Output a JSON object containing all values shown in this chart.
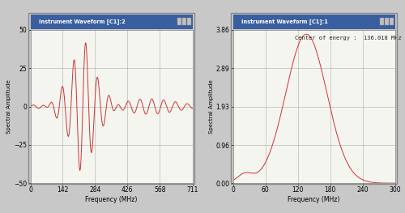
{
  "left_title": "Instrument Waveform [C1]:2",
  "right_title": "Instrument Waveform [C1]:1",
  "left_xlabel": "Frequency (MHz)",
  "right_xlabel": "Frequency (MHz)",
  "left_ylabel": "Spectral Amplitude",
  "right_ylabel": "Spectral Amplitude",
  "left_xlim": [
    0,
    711
  ],
  "left_ylim": [
    -50,
    50
  ],
  "left_xticks": [
    0,
    142,
    284,
    426,
    568,
    711
  ],
  "left_yticks": [
    -50.0,
    -25.0,
    0.0,
    25.0,
    50.0
  ],
  "right_xlim": [
    0,
    300
  ],
  "right_ylim": [
    0.0,
    3.86
  ],
  "right_xticks": [
    0,
    60,
    120,
    180,
    240,
    300
  ],
  "right_yticks": [
    0.0,
    0.96,
    1.93,
    2.89,
    3.86
  ],
  "annotation": "Center of energy :  136.018 MHz",
  "line_color": "#cc3333",
  "bg_color": "#c8c8c8",
  "plot_bg": "#f5f5f0",
  "grid_color": "#999999",
  "titlebar_bg": "#3a5fa0",
  "titlebar_text": "#ffffff",
  "window_border": "#888888"
}
